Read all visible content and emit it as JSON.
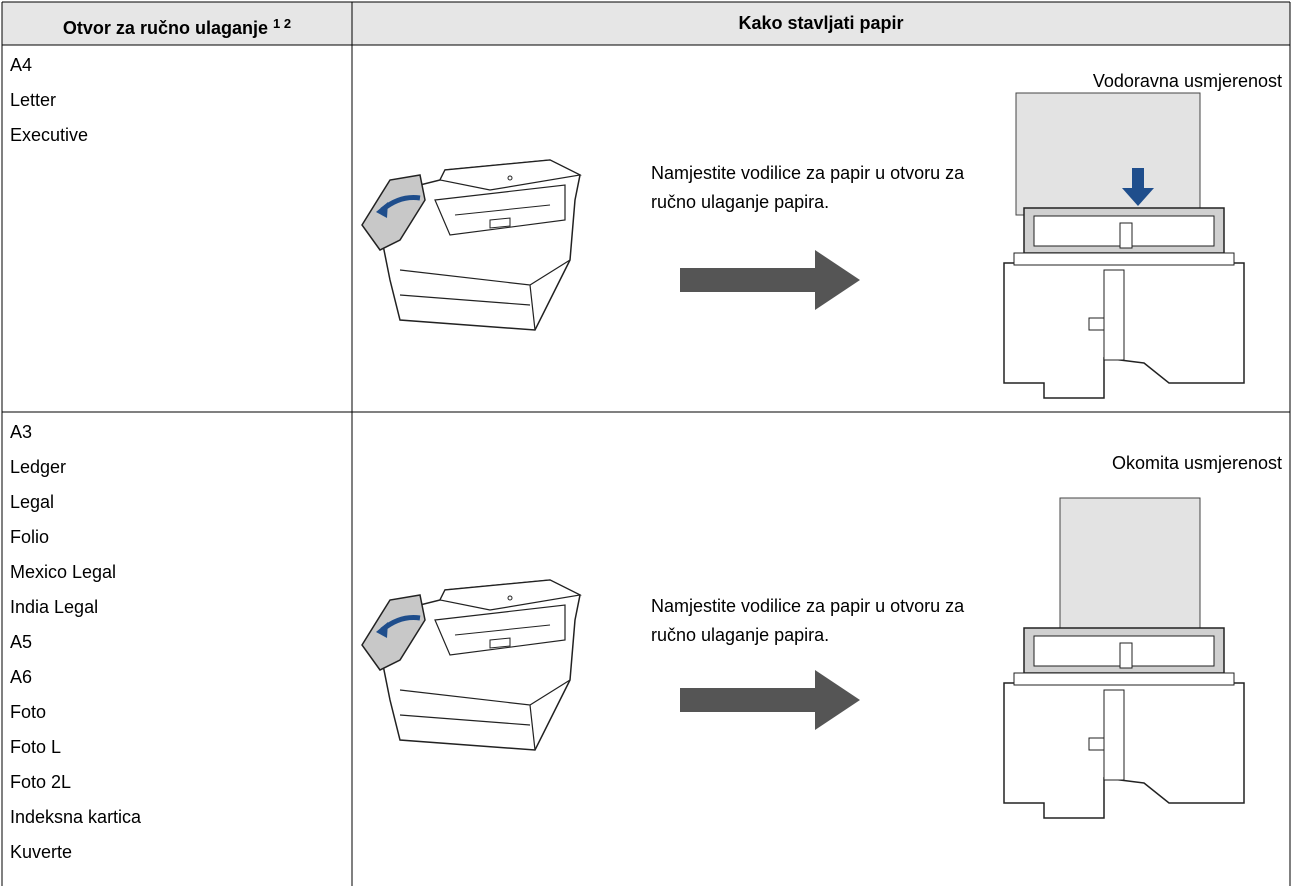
{
  "table": {
    "headers": [
      {
        "text": "Otvor za ručno ulaganje",
        "notes": [
          "1",
          "2"
        ]
      },
      {
        "text": "Kako stavljati papir"
      }
    ],
    "rows": [
      {
        "sizes": [
          "A4",
          "Letter",
          "Executive"
        ],
        "instruction": "Namjestite vodilice za papir u otvoru za ručno ulaganje papira.",
        "orientation": "Vodoravna usmjerenost"
      },
      {
        "sizes": [
          "A3",
          "Ledger",
          "Legal",
          "Folio",
          "Mexico Legal",
          "India Legal",
          "A5",
          "A6",
          "Foto",
          "Foto L",
          "Foto 2L",
          "Indeksna kartica",
          "Kuverte"
        ],
        "instruction": "Namjestite vodilice za papir u otvoru za ručno ulaganje papira.",
        "orientation": "Okomita usmjerenost"
      }
    ]
  }
}
